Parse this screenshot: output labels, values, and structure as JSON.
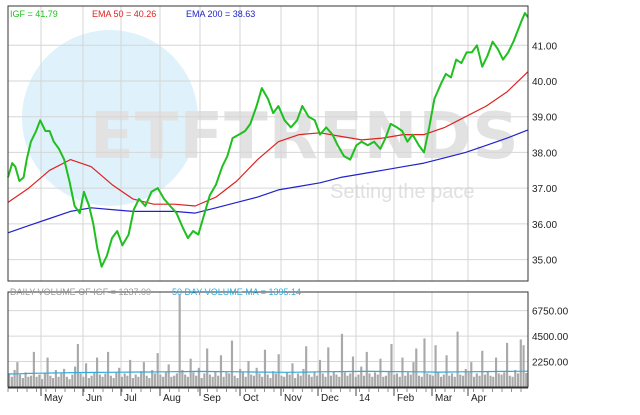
{
  "chart_data": [
    {
      "type": "line",
      "panel": "price",
      "ylim": [
        34.4,
        42.1
      ],
      "y_ticks": [
        35.0,
        36.0,
        37.0,
        38.0,
        39.0,
        40.0,
        41.0
      ],
      "y_tick_labels": [
        "35.00",
        "36.00",
        "37.00",
        "38.00",
        "39.00",
        "40.00",
        "41.00"
      ],
      "x_tick_labels": [
        "May",
        "Jun",
        "Jul",
        "Aug",
        "Sep",
        "Oct",
        "Nov",
        "Dec",
        "14",
        "Feb",
        "Mar",
        "Apr"
      ],
      "grid": true,
      "legend_placement": "top-left",
      "series": [
        {
          "name": "IGF = 41.79",
          "color": "#1fbf1f",
          "points": [
            [
              0,
              37.3
            ],
            [
              0.4,
              37.7
            ],
            [
              0.7,
              37.6
            ],
            [
              1.1,
              37.2
            ],
            [
              1.5,
              37.3
            ],
            [
              1.8,
              37.8
            ],
            [
              2.2,
              38.3
            ],
            [
              2.7,
              38.6
            ],
            [
              3.1,
              38.9
            ],
            [
              3.6,
              38.6
            ],
            [
              4.0,
              38.6
            ],
            [
              4.4,
              38.3
            ],
            [
              4.9,
              38.1
            ],
            [
              5.4,
              37.8
            ],
            [
              5.9,
              37.2
            ],
            [
              6.4,
              36.5
            ],
            [
              6.9,
              36.3
            ],
            [
              7.3,
              36.9
            ],
            [
              7.8,
              36.5
            ],
            [
              8.2,
              36.0
            ],
            [
              8.6,
              35.3
            ],
            [
              9.0,
              34.8
            ],
            [
              9.5,
              35.1
            ],
            [
              10.0,
              35.6
            ],
            [
              10.5,
              35.8
            ],
            [
              11.0,
              35.4
            ],
            [
              11.6,
              35.7
            ],
            [
              12.1,
              36.4
            ],
            [
              12.6,
              36.7
            ],
            [
              13.2,
              36.5
            ],
            [
              13.8,
              36.9
            ],
            [
              14.4,
              37.0
            ],
            [
              15.0,
              36.7
            ],
            [
              15.6,
              36.5
            ],
            [
              16.2,
              36.3
            ],
            [
              16.8,
              35.9
            ],
            [
              17.3,
              35.6
            ],
            [
              17.8,
              35.8
            ],
            [
              18.3,
              35.7
            ],
            [
              18.9,
              36.3
            ],
            [
              19.4,
              36.8
            ],
            [
              20.0,
              37.1
            ],
            [
              20.6,
              37.6
            ],
            [
              21.1,
              37.9
            ],
            [
              21.6,
              38.4
            ],
            [
              22.2,
              38.5
            ],
            [
              22.8,
              38.6
            ],
            [
              23.3,
              38.8
            ],
            [
              23.9,
              39.3
            ],
            [
              24.4,
              39.8
            ],
            [
              25.0,
              39.5
            ],
            [
              25.5,
              39.1
            ],
            [
              26.0,
              39.3
            ],
            [
              26.6,
              38.9
            ],
            [
              27.2,
              38.7
            ],
            [
              27.8,
              38.9
            ],
            [
              28.3,
              39.3
            ],
            [
              28.9,
              39.0
            ],
            [
              29.5,
              38.9
            ],
            [
              30.0,
              38.5
            ],
            [
              30.6,
              38.7
            ],
            [
              31.2,
              38.5
            ],
            [
              31.7,
              38.2
            ],
            [
              32.3,
              37.9
            ],
            [
              32.9,
              37.8
            ],
            [
              33.5,
              38.2
            ],
            [
              34.0,
              38.3
            ],
            [
              34.6,
              38.2
            ],
            [
              35.2,
              38.3
            ],
            [
              35.8,
              38.1
            ],
            [
              36.3,
              38.4
            ],
            [
              36.8,
              38.8
            ],
            [
              37.4,
              38.7
            ],
            [
              37.9,
              38.6
            ],
            [
              38.4,
              38.3
            ],
            [
              38.9,
              38.5
            ],
            [
              39.5,
              38.2
            ],
            [
              40.0,
              38.0
            ],
            [
              40.5,
              38.7
            ],
            [
              41.0,
              39.5
            ],
            [
              41.6,
              39.9
            ],
            [
              42.1,
              40.2
            ],
            [
              42.6,
              40.1
            ],
            [
              43.1,
              40.6
            ],
            [
              43.6,
              40.5
            ],
            [
              44.1,
              40.8
            ],
            [
              44.6,
              40.8
            ],
            [
              45.1,
              41.0
            ],
            [
              45.6,
              40.4
            ],
            [
              46.1,
              40.7
            ],
            [
              46.6,
              41.1
            ],
            [
              47.1,
              40.9
            ],
            [
              47.6,
              40.6
            ],
            [
              48.1,
              40.8
            ],
            [
              48.6,
              41.1
            ],
            [
              49.0,
              41.4
            ],
            [
              49.4,
              41.7
            ],
            [
              49.7,
              41.9
            ],
            [
              50.0,
              41.79
            ]
          ]
        },
        {
          "name": "EMA 50 = 40.26",
          "color": "#dd2222",
          "points": [
            [
              0,
              36.6
            ],
            [
              2,
              37.0
            ],
            [
              4,
              37.5
            ],
            [
              6,
              37.8
            ],
            [
              8,
              37.6
            ],
            [
              10,
              37.1
            ],
            [
              12,
              36.7
            ],
            [
              14,
              36.55
            ],
            [
              16,
              36.55
            ],
            [
              18,
              36.5
            ],
            [
              20,
              36.75
            ],
            [
              22,
              37.2
            ],
            [
              24,
              37.8
            ],
            [
              26,
              38.3
            ],
            [
              28,
              38.5
            ],
            [
              30,
              38.55
            ],
            [
              32,
              38.45
            ],
            [
              34,
              38.35
            ],
            [
              36,
              38.4
            ],
            [
              38,
              38.5
            ],
            [
              40,
              38.5
            ],
            [
              42,
              38.7
            ],
            [
              44,
              39.0
            ],
            [
              46,
              39.3
            ],
            [
              48,
              39.7
            ],
            [
              50,
              40.26
            ]
          ]
        },
        {
          "name": "EMA 200 = 38.63",
          "color": "#2222cc",
          "points": [
            [
              0,
              35.75
            ],
            [
              2,
              35.95
            ],
            [
              4,
              36.15
            ],
            [
              6,
              36.35
            ],
            [
              8,
              36.45
            ],
            [
              10,
              36.4
            ],
            [
              12,
              36.35
            ],
            [
              14,
              36.35
            ],
            [
              16,
              36.35
            ],
            [
              18,
              36.3
            ],
            [
              20,
              36.45
            ],
            [
              22,
              36.6
            ],
            [
              24,
              36.75
            ],
            [
              26,
              36.95
            ],
            [
              28,
              37.05
            ],
            [
              30,
              37.15
            ],
            [
              32,
              37.3
            ],
            [
              34,
              37.4
            ],
            [
              36,
              37.5
            ],
            [
              38,
              37.6
            ],
            [
              40,
              37.7
            ],
            [
              42,
              37.85
            ],
            [
              44,
              38.0
            ],
            [
              46,
              38.2
            ],
            [
              48,
              38.4
            ],
            [
              50,
              38.63
            ]
          ]
        }
      ]
    },
    {
      "type": "bar",
      "panel": "volume",
      "ylim": [
        0,
        8400
      ],
      "y_ticks": [
        2250,
        4500,
        6750
      ],
      "y_tick_labels": [
        "2250.00",
        "4500.00",
        "6750.00"
      ],
      "grid": true,
      "legend_placement": "top-left",
      "series": [
        {
          "name": "DAILY VOLUME OF IGF = 1237.00",
          "color": "#a9a9a9",
          "values": [
            1200,
            900,
            1500,
            2200,
            1100,
            800,
            1300,
            900,
            1000,
            3100,
            900,
            1100,
            700,
            1200,
            2600,
            1000,
            800,
            1500,
            900,
            1200,
            1600,
            900,
            700,
            1100,
            1800,
            3800,
            1200,
            900,
            2100,
            800,
            1000,
            1300,
            2600,
            1100,
            900,
            1200,
            3100,
            1000,
            800,
            1300,
            1700,
            900,
            1200,
            1000,
            2400,
            800,
            1100,
            900,
            1400,
            2200,
            1000,
            800,
            1500,
            1200,
            3000,
            1100,
            900,
            1300,
            2000,
            900,
            1000,
            1200,
            8200,
            1500,
            1100,
            900,
            2500,
            1300,
            1000,
            1700,
            800,
            1200,
            3400,
            1100,
            900,
            1400,
            1000,
            2800,
            900,
            1300,
            1200,
            4100,
            1000,
            800,
            1600,
            1300,
            900,
            2300,
            1100,
            1000,
            1700,
            1200,
            900,
            3300,
            1100,
            800,
            1400,
            1200,
            2900,
            1000,
            900,
            1300,
            1100,
            2100,
            800,
            1200,
            1000,
            1600,
            3600,
            1100,
            900,
            1300,
            1000,
            2400,
            1200,
            900,
            3500,
            1000,
            1400,
            1100,
            900,
            4700,
            1300,
            1000,
            1200,
            2700,
            900,
            1100,
            1800,
            1000,
            3100,
            1200,
            900,
            1300,
            1100,
            2500,
            900,
            1000,
            1400,
            3800,
            1100,
            1200,
            900,
            2600,
            1000,
            1300,
            1100,
            2200,
            3400,
            1000,
            900,
            4300,
            1200,
            1100,
            1000,
            3700,
            1300,
            900,
            1100,
            2800,
            1000,
            1200,
            900,
            4900,
            1100,
            1000,
            1600,
            1300,
            2200,
            900,
            1200,
            1000,
            3200,
            1100,
            1400,
            1000,
            900,
            2600,
            1200,
            1100,
            1300,
            3900,
            1000,
            900,
            1500,
            1200,
            4200,
            3700,
            1237
          ]
        },
        {
          "name": "50 DAY VOLUME MA = 1395.14",
          "color": "#33aadd",
          "values": [
            1150,
            1170,
            1200,
            1220,
            1240,
            1260,
            1270,
            1280,
            1290,
            1300,
            1310,
            1320,
            1330,
            1330,
            1340,
            1350,
            1360,
            1380,
            1370,
            1360,
            1350,
            1340,
            1330,
            1320,
            1310,
            1300,
            1310,
            1320,
            1340,
            1350,
            1360,
            1370,
            1380,
            1380,
            1370,
            1360,
            1350,
            1340,
            1330,
            1320,
            1330,
            1340,
            1350,
            1360,
            1370,
            1380,
            1390,
            1395
          ]
        }
      ]
    }
  ],
  "legend": {
    "price": [
      "IGF = 41.79",
      "EMA 50 = 40.26",
      "EMA 200 = 38.63"
    ],
    "volume": [
      "DAILY VOLUME OF IGF = 1237.00",
      "50 DAY VOLUME MA = 1395.14"
    ]
  },
  "watermark": {
    "brand": "ETFTRENDS",
    "tagline": "Setting the pace"
  },
  "colors": {
    "background": "#ffffff",
    "grid": "#d6d6d6",
    "frame": "#333333",
    "watermark": "#dcdcdc",
    "watermark_globe": "#dff1fb"
  }
}
